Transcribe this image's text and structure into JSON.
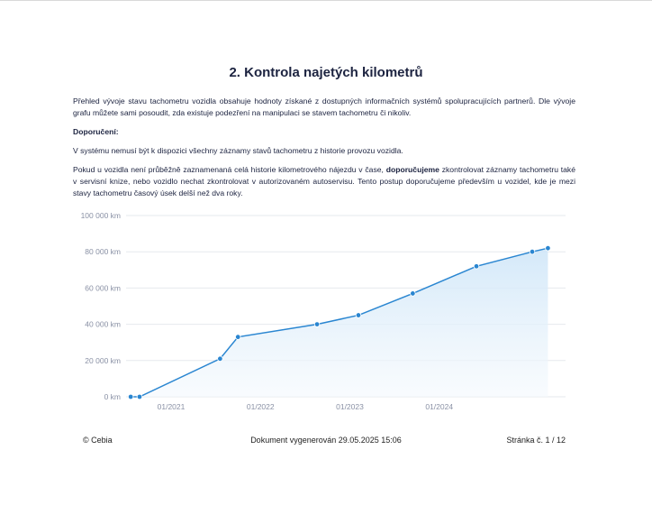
{
  "document": {
    "title": "2. Kontrola najetých kilometrů",
    "intro": "Přehled vývoje stavu tachometru vozidla obsahuje hodnoty získané z dostupných informačních systémů spolupracujících partnerů. Dle vývoje grafu můžete sami posoudit, zda existuje podezření na manipulaci se stavem tachometru či nikoliv.",
    "recommendation_heading": "Doporučení:",
    "note": "V systému nemusí být k dispozici všechny záznamy stavů tachometru z historie provozu vozidla.",
    "advice_before": "Pokud u vozidla není průběžně zaznamenaná celá historie kilometrového nájezdu v čase, ",
    "advice_bold": "doporučujeme",
    "advice_after": " zkontrolovat záznamy tachometru také v servisní knize, nebo vozidlo nechat zkontrolovat v autorizovaném autoservisu. Tento postup doporučujeme především u vozidel, kde je mezi stavy tachometru časový úsek delší než dva roky."
  },
  "footer": {
    "copyright": "© Cebia",
    "generated": "Dokument vygenerován 29.05.2025 15:06",
    "page": "Stránka č. 1 / 12"
  },
  "colors": {
    "line": "#2a86d1",
    "point": "#2a86d1",
    "area_top": "#cfe6f8",
    "area_bottom": "#f4f9fd",
    "grid": "#e6e9ee",
    "axis_text": "#8a91a5"
  },
  "chart_data": {
    "type": "area",
    "title": "",
    "xlabel": "",
    "ylabel": "",
    "ylim": [
      0,
      100000
    ],
    "yticks": [
      0,
      20000,
      40000,
      60000,
      80000,
      100000
    ],
    "ytick_labels": [
      "0 km",
      "20 000 km",
      "40 000 km",
      "60 000 km",
      "80 000 km",
      "100 000 km"
    ],
    "xticks": [
      "2021-01-01",
      "2022-01-01",
      "2023-01-01",
      "2024-01-01"
    ],
    "xtick_labels": [
      "01/2021",
      "01/2022",
      "01/2023",
      "01/2024"
    ],
    "xlim": [
      "2020-07-01",
      "2025-05-31"
    ],
    "grid": true,
    "series": [
      {
        "points": [
          {
            "x": "2020-07-20",
            "y": 0
          },
          {
            "x": "2020-08-25",
            "y": 0
          },
          {
            "x": "2021-07-20",
            "y": 21000
          },
          {
            "x": "2021-10-01",
            "y": 33000
          },
          {
            "x": "2022-08-20",
            "y": 40000
          },
          {
            "x": "2023-02-05",
            "y": 45000
          },
          {
            "x": "2023-09-15",
            "y": 57000
          },
          {
            "x": "2024-06-01",
            "y": 72000
          },
          {
            "x": "2025-01-15",
            "y": 80000
          },
          {
            "x": "2025-03-20",
            "y": 82000
          }
        ]
      }
    ]
  }
}
